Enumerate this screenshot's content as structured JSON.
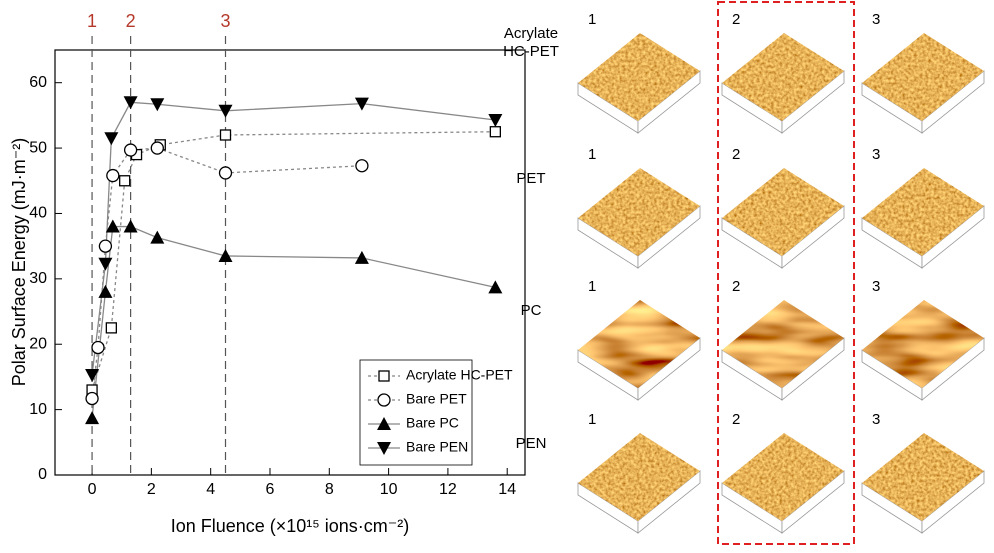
{
  "chart_data": {
    "type": "line",
    "xlabel": "Ion Fluence (×10¹⁵ ions·cm⁻²)",
    "ylabel": "Polar Surface Energy (mJ·m⁻²)",
    "xlim": [
      -1.25,
      14.6
    ],
    "xticks": [
      0,
      2,
      4,
      6,
      8,
      10,
      12,
      14
    ],
    "ylim": [
      0,
      65
    ],
    "yticks": [
      0,
      10,
      20,
      30,
      40,
      50,
      60
    ],
    "legend": "lower right",
    "reference_lines": {
      "color": "#b5382a",
      "x": [
        0,
        1.3,
        4.5
      ],
      "labels": [
        "1",
        "2",
        "3"
      ]
    },
    "series": [
      {
        "name": "Acrylate HC-PET",
        "color": "#888888",
        "marker": "square-open",
        "dashed": true,
        "x": [
          0,
          0.65,
          1.1,
          1.5,
          2.3,
          4.5,
          13.6
        ],
        "values": [
          13,
          22.5,
          45,
          49,
          50.5,
          52,
          52.5
        ]
      },
      {
        "name": "Bare PET",
        "color": "#888888",
        "marker": "circle-open",
        "dashed": true,
        "x": [
          0,
          0.2,
          0.45,
          0.7,
          1.3,
          2.2,
          4.5,
          9.1
        ],
        "values": [
          11.7,
          19.5,
          35,
          45.8,
          49.7,
          50,
          46.2,
          47.3
        ]
      },
      {
        "name": "Bare PC",
        "color": "#888888",
        "marker": "triangle-up",
        "dashed": false,
        "x": [
          0,
          0.45,
          0.7,
          1.3,
          2.2,
          4.5,
          9.1,
          13.6
        ],
        "values": [
          8.7,
          28,
          38,
          38,
          36.3,
          33.5,
          33.2,
          28.7
        ]
      },
      {
        "name": "Bare PEN",
        "color": "#888888",
        "marker": "triangle-down",
        "dashed": false,
        "x": [
          0,
          0.45,
          0.65,
          1.3,
          2.2,
          4.5,
          9.1,
          13.6
        ],
        "values": [
          15.3,
          32.3,
          51.5,
          57,
          56.7,
          55.7,
          56.8,
          54.3
        ]
      }
    ]
  },
  "afm_panels": {
    "rows": [
      "Acrylate HC-PET",
      "PET",
      "PC",
      "PEN"
    ],
    "columns": [
      "1",
      "2",
      "3"
    ],
    "highlight_color": "#e02020"
  }
}
